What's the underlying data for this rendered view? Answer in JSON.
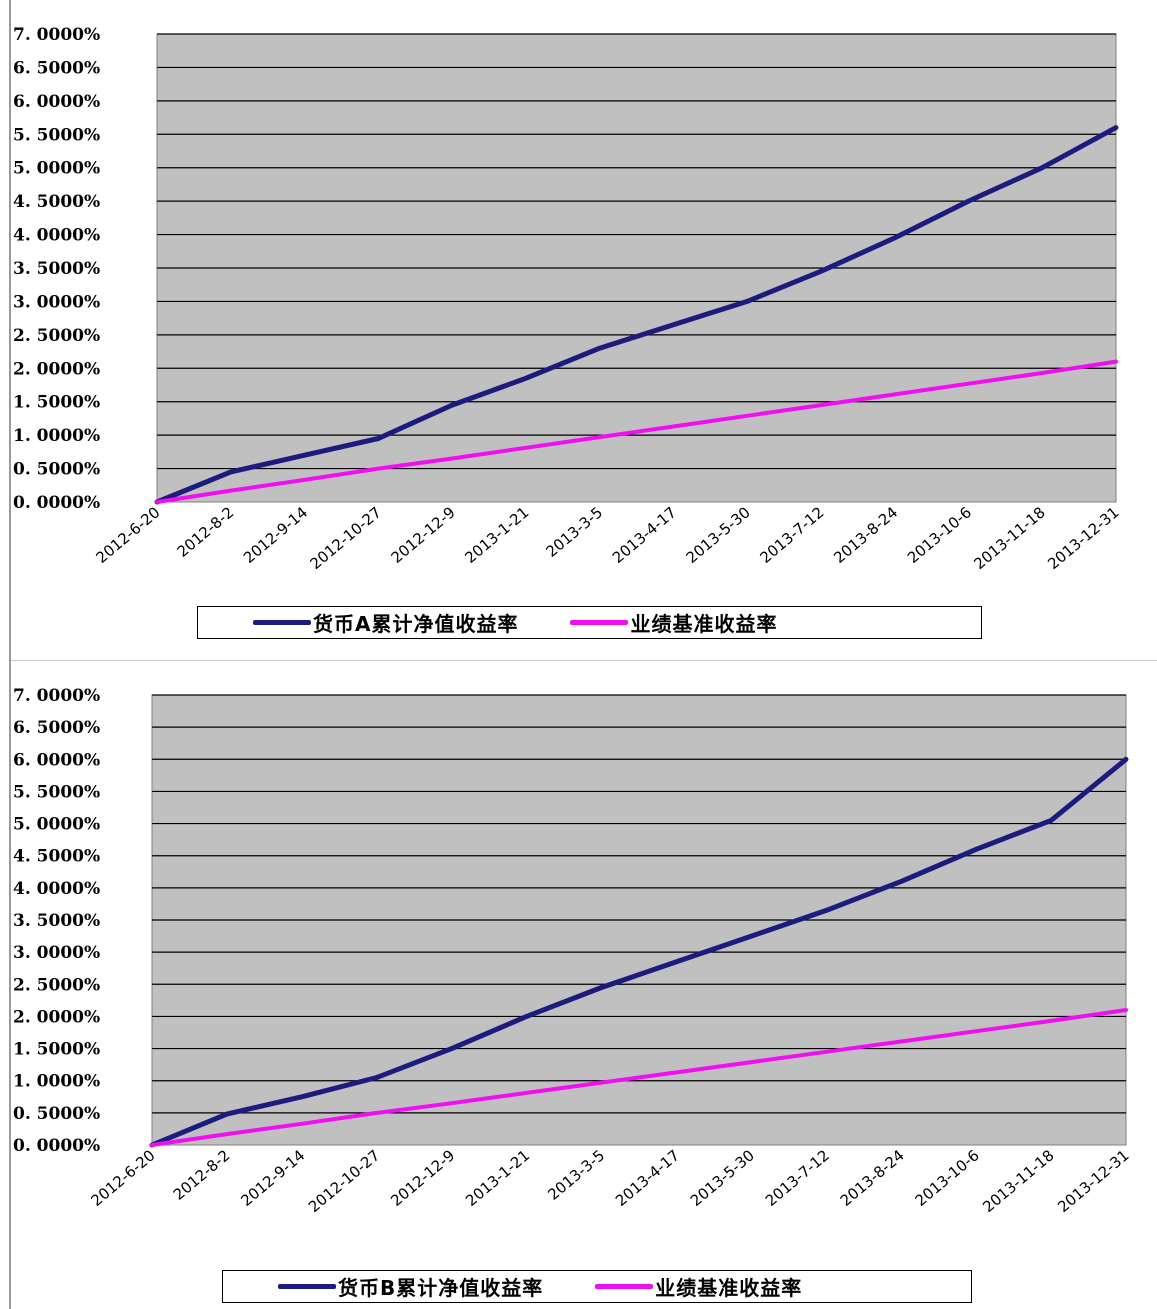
{
  "colors": {
    "plot_bg": "#c0c0c0",
    "grid": "#000000",
    "fund": "#1c1c7e",
    "benchmark": "#ee10ee"
  },
  "chart_data": [
    {
      "type": "line",
      "title": "",
      "xlabel": "",
      "ylabel": "",
      "ylim": [
        0,
        7
      ],
      "grid": true,
      "legend_position": "bottom",
      "yticks": [
        "0. 0000%",
        "0. 5000%",
        "1. 0000%",
        "1. 5000%",
        "2. 0000%",
        "2. 5000%",
        "3. 0000%",
        "3. 5000%",
        "4. 0000%",
        "4. 5000%",
        "5. 0000%",
        "5. 5000%",
        "6. 0000%",
        "6. 5000%",
        "7. 0000%"
      ],
      "categories": [
        "2012-6-20",
        "2012-8-2",
        "2012-9-14",
        "2012-10-27",
        "2012-12-9",
        "2013-1-21",
        "2013-3-5",
        "2013-4-17",
        "2013-5-30",
        "2013-7-12",
        "2013-8-24",
        "2013-10-6",
        "2013-11-18",
        "2013-12-31"
      ],
      "series": [
        {
          "name": "货币A累计净值收益率",
          "color": "#1c1c7e",
          "values": [
            0,
            0.45,
            0.7,
            0.95,
            1.45,
            1.85,
            2.3,
            2.65,
            3.0,
            3.45,
            3.95,
            4.5,
            5.0,
            5.6
          ]
        },
        {
          "name": "业绩基准收益率",
          "color": "#ee10ee",
          "values": [
            0,
            0.17,
            0.33,
            0.5,
            0.65,
            0.81,
            0.97,
            1.13,
            1.29,
            1.45,
            1.61,
            1.77,
            1.93,
            2.1
          ]
        }
      ]
    },
    {
      "type": "line",
      "title": "",
      "xlabel": "",
      "ylabel": "",
      "ylim": [
        0,
        7
      ],
      "grid": true,
      "legend_position": "bottom",
      "yticks": [
        "0. 0000%",
        "0. 5000%",
        "1. 0000%",
        "1. 5000%",
        "2. 0000%",
        "2. 5000%",
        "3. 0000%",
        "3. 5000%",
        "4. 0000%",
        "4. 5000%",
        "5. 0000%",
        "5. 5000%",
        "6. 0000%",
        "6. 5000%",
        "7. 0000%"
      ],
      "categories": [
        "2012-6-20",
        "2012-8-2",
        "2012-9-14",
        "2012-10-27",
        "2012-12-9",
        "2013-1-21",
        "2013-3-5",
        "2013-4-17",
        "2013-5-30",
        "2013-7-12",
        "2013-8-24",
        "2013-10-6",
        "2013-11-18",
        "2013-12-31"
      ],
      "series": [
        {
          "name": "货币B累计净值收益率",
          "color": "#1c1c7e",
          "values": [
            0,
            0.48,
            0.75,
            1.05,
            1.5,
            2.0,
            2.45,
            2.85,
            3.25,
            3.65,
            4.1,
            4.6,
            5.05,
            6.0
          ]
        },
        {
          "name": "业绩基准收益率",
          "color": "#ee10ee",
          "values": [
            0,
            0.17,
            0.33,
            0.5,
            0.65,
            0.81,
            0.97,
            1.13,
            1.29,
            1.45,
            1.61,
            1.77,
            1.93,
            2.1
          ]
        }
      ]
    }
  ]
}
